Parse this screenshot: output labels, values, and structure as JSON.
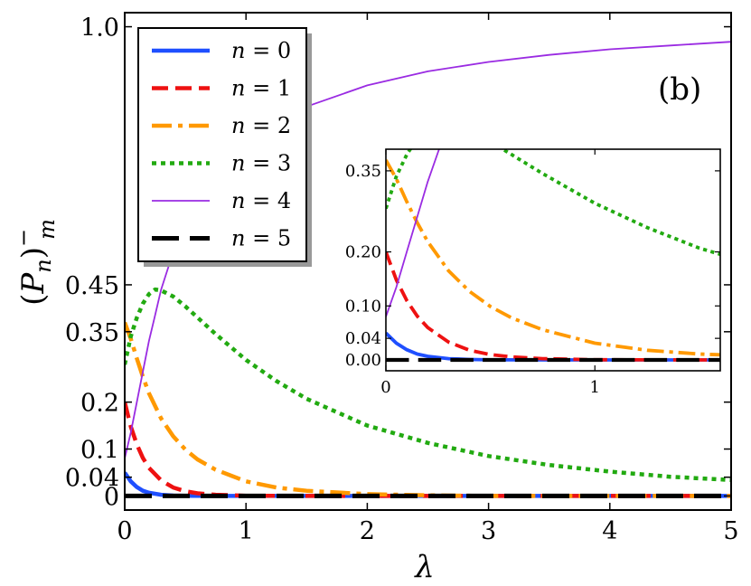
{
  "chart_data": {
    "type": "line",
    "xlabel": "λ",
    "ylabel": "(P_n)_m^−",
    "xlim": [
      0,
      5
    ],
    "ylim": [
      -0.03,
      1.03
    ],
    "xticks": [
      "0",
      "1",
      "2",
      "3",
      "4",
      "5"
    ],
    "xtick_values": [
      0,
      1,
      2,
      3,
      4,
      5
    ],
    "yticks": [
      "0",
      "0.04",
      "0.1",
      "0.2",
      "0.35",
      "0.45",
      "1.0"
    ],
    "ytick_values": [
      0,
      0.04,
      0.1,
      0.2,
      0.35,
      0.45,
      1.0
    ],
    "annotation": "(b)",
    "legend_position": "upper-left",
    "series": [
      {
        "name": "n = 0",
        "color": "#1f4fff",
        "style": "solid-thick",
        "x": [
          0,
          0.05,
          0.1,
          0.15,
          0.2,
          0.3,
          0.4,
          0.5,
          0.75,
          1,
          2,
          3,
          4,
          5
        ],
        "y": [
          0.0498,
          0.031,
          0.019,
          0.011,
          0.0068,
          0.0025,
          0.0009,
          0.0003,
          0,
          0,
          0,
          0,
          0,
          0
        ]
      },
      {
        "name": "n = 1",
        "color": "#ee1111",
        "style": "dashed",
        "x": [
          0,
          0.05,
          0.1,
          0.15,
          0.2,
          0.3,
          0.4,
          0.5,
          0.6,
          0.75,
          1,
          1.5,
          2,
          3,
          4,
          5
        ],
        "y": [
          0.2,
          0.148,
          0.11,
          0.081,
          0.06,
          0.033,
          0.018,
          0.01,
          0.0057,
          0.0025,
          0.0005,
          0,
          0,
          0,
          0,
          0
        ]
      },
      {
        "name": "n = 2",
        "color": "#ff9900",
        "style": "dash-dot",
        "x": [
          0,
          0.05,
          0.1,
          0.15,
          0.2,
          0.3,
          0.4,
          0.5,
          0.6,
          0.75,
          1,
          1.25,
          1.5,
          2,
          2.5,
          3,
          4,
          5
        ],
        "y": [
          0.37,
          0.335,
          0.293,
          0.254,
          0.219,
          0.165,
          0.127,
          0.099,
          0.078,
          0.056,
          0.031,
          0.018,
          0.011,
          0.004,
          0.0015,
          0,
          0,
          0
        ]
      },
      {
        "name": "n = 3",
        "color": "#22aa11",
        "style": "dotted",
        "x": [
          0,
          0.05,
          0.1,
          0.15,
          0.2,
          0.25,
          0.3,
          0.4,
          0.5,
          0.75,
          1,
          1.25,
          1.5,
          2,
          2.5,
          3,
          3.5,
          4,
          4.5,
          5
        ],
        "y": [
          0.28,
          0.34,
          0.38,
          0.41,
          0.43,
          0.44,
          0.438,
          0.425,
          0.404,
          0.345,
          0.29,
          0.245,
          0.207,
          0.15,
          0.113,
          0.085,
          0.066,
          0.052,
          0.041,
          0.034
        ]
      },
      {
        "name": "n = 4",
        "color": "#9a2be2",
        "style": "solid-thin",
        "x": [
          0,
          0.05,
          0.1,
          0.15,
          0.2,
          0.25,
          0.3,
          0.4,
          0.5,
          0.6,
          0.75,
          1,
          1.25,
          1.5,
          2,
          2.5,
          3,
          3.5,
          4,
          4.5,
          5
        ],
        "y": [
          0.08,
          0.135,
          0.2,
          0.265,
          0.33,
          0.385,
          0.44,
          0.52,
          0.59,
          0.63,
          0.685,
          0.75,
          0.795,
          0.83,
          0.875,
          0.905,
          0.925,
          0.94,
          0.952,
          0.96,
          0.968
        ]
      },
      {
        "name": "n = 5",
        "color": "#000000",
        "style": "long-dash-thick",
        "x": [
          0,
          5
        ],
        "y": [
          0,
          0
        ]
      }
    ],
    "inset": {
      "xlim": [
        0,
        1.6
      ],
      "ylim": [
        -0.02,
        0.39
      ],
      "xticks": [
        "0",
        "1"
      ],
      "xtick_values": [
        0,
        1
      ],
      "yticks": [
        "0.00",
        "0.04",
        "0.10",
        "0.20",
        "0.35"
      ],
      "ytick_values": [
        0,
        0.04,
        0.1,
        0.2,
        0.35
      ]
    }
  }
}
